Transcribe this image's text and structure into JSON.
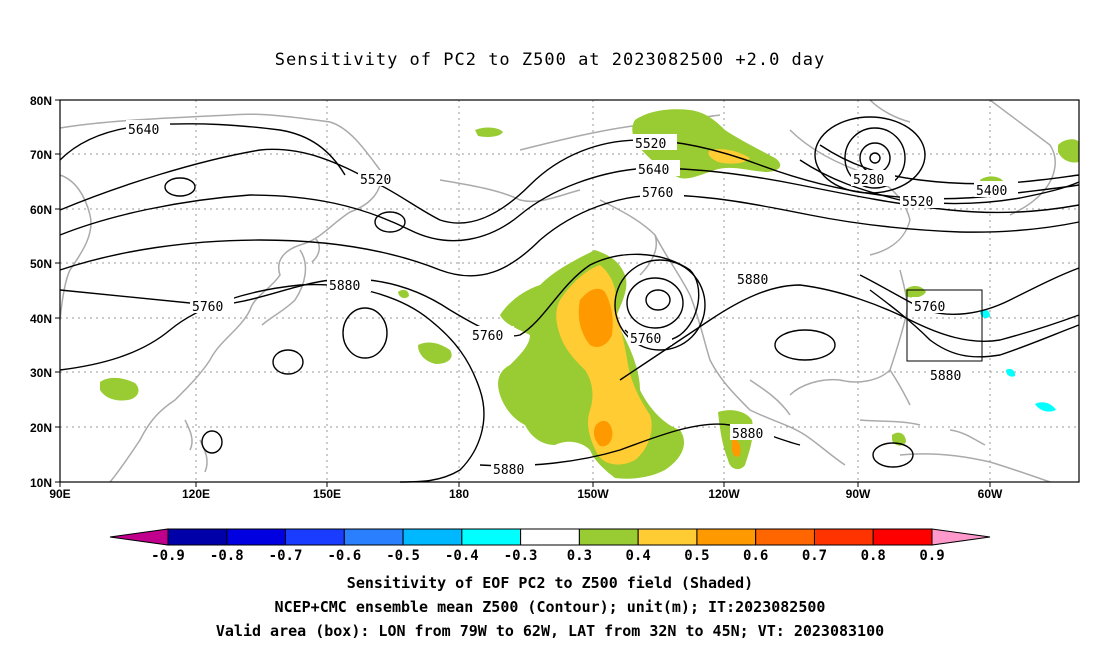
{
  "title": "Sensitivity of PC2 to Z500 at 2023082500 +2.0 day",
  "lat_labels": [
    "80N",
    "70N",
    "60N",
    "50N",
    "40N",
    "30N",
    "20N",
    "10N"
  ],
  "lon_labels": [
    "90E",
    "120E",
    "150E",
    "180",
    "150W",
    "120W",
    "90W",
    "60W"
  ],
  "contour_labels": [
    {
      "text": "5640"
    },
    {
      "text": "5520"
    },
    {
      "text": "5520"
    },
    {
      "text": "5640"
    },
    {
      "text": "5760"
    },
    {
      "text": "5280"
    },
    {
      "text": "5400"
    },
    {
      "text": "5520"
    },
    {
      "text": "5880"
    },
    {
      "text": "5760"
    },
    {
      "text": "5880"
    },
    {
      "text": "5760"
    },
    {
      "text": "5760"
    },
    {
      "text": "5760"
    },
    {
      "text": "5880"
    },
    {
      "text": "5880"
    },
    {
      "text": "5880"
    }
  ],
  "colorbar": {
    "ticks": [
      "-0.9",
      "-0.8",
      "-0.7",
      "-0.6",
      "-0.5",
      "-0.4",
      "-0.3",
      "0.3",
      "0.4",
      "0.5",
      "0.6",
      "0.7",
      "0.8",
      "0.9"
    ],
    "colors": [
      "#0000a8",
      "#0000e0",
      "#1a3cff",
      "#2a7fff",
      "#00b8ff",
      "#00ffff",
      "#ffffff",
      "#99cc33",
      "#ffcc33",
      "#ff9900",
      "#ff6600",
      "#ff3300",
      "#ff0000"
    ],
    "left_cap_color": "#c0008c",
    "right_cap_color": "#ff99cc"
  },
  "valid_box": {
    "lon_range": "79W to 62W",
    "lat_range": "32N to 45N"
  },
  "captions": [
    "Sensitivity of EOF PC2 to Z500 field (Shaded)",
    "NCEP+CMC ensemble mean Z500 (Contour); unit(m); IT:2023082500",
    "Valid area (box): LON from 79W to 62W, LAT from 32N to 45N; VT: 2023083100"
  ]
}
